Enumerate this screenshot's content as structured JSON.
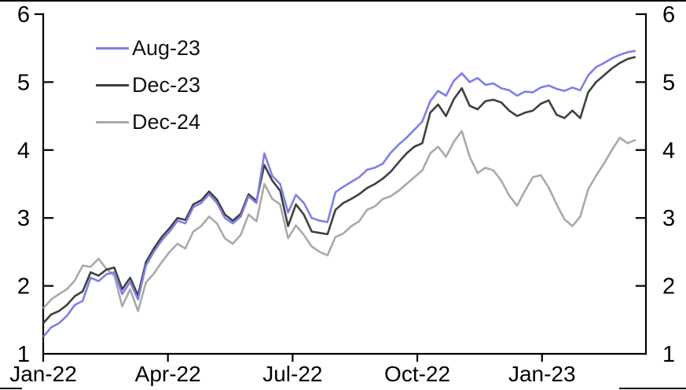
{
  "chart_data": {
    "type": "line",
    "title": "",
    "xlabel": "",
    "ylabel": "",
    "ylim": [
      1,
      6
    ],
    "grid": false,
    "legend_position": "inside-top-left",
    "axis_color": "#000000",
    "y_tick_labels_left": [
      "6",
      "5",
      "4",
      "3",
      "2",
      "1"
    ],
    "y_tick_labels_right": [
      "6",
      "5",
      "4",
      "3",
      "2",
      "1"
    ],
    "y_tick_values": [
      6,
      5,
      4,
      3,
      2,
      1
    ],
    "x_tick_labels": [
      "Jan-22",
      "Apr-22",
      "Jul-22",
      "Oct-22",
      "Jan-23"
    ],
    "x_tick_month_offsets": [
      0,
      3,
      6,
      9,
      12
    ],
    "x_range_months": 14.5,
    "series": [
      {
        "name": "Aug-23",
        "color": "#7e7ee8",
        "values": [
          1.25,
          1.39,
          1.45,
          1.56,
          1.72,
          1.78,
          2.12,
          2.07,
          2.17,
          2.2,
          1.88,
          2.06,
          1.8,
          2.3,
          2.5,
          2.67,
          2.8,
          2.96,
          2.92,
          3.16,
          3.22,
          3.35,
          3.22,
          3.0,
          2.92,
          3.02,
          3.32,
          3.22,
          3.95,
          3.62,
          3.5,
          3.08,
          3.34,
          3.22,
          3.0,
          2.96,
          2.94,
          3.38,
          3.46,
          3.53,
          3.6,
          3.71,
          3.74,
          3.8,
          3.96,
          4.08,
          4.18,
          4.3,
          4.42,
          4.72,
          4.87,
          4.8,
          5.02,
          5.13,
          5.0,
          5.06,
          4.96,
          4.98,
          4.91,
          4.88,
          4.8,
          4.86,
          4.85,
          4.92,
          4.95,
          4.9,
          4.87,
          4.92,
          4.88,
          5.1,
          5.22,
          5.28,
          5.35,
          5.4,
          5.44,
          5.46
        ]
      },
      {
        "name": "Dec-23",
        "color": "#3f3f3f",
        "values": [
          1.45,
          1.58,
          1.63,
          1.72,
          1.85,
          1.92,
          2.2,
          2.15,
          2.24,
          2.27,
          1.95,
          2.12,
          1.86,
          2.35,
          2.55,
          2.72,
          2.85,
          3.0,
          2.97,
          3.2,
          3.26,
          3.39,
          3.27,
          3.05,
          2.96,
          3.06,
          3.35,
          3.25,
          3.78,
          3.55,
          3.4,
          2.88,
          3.2,
          3.05,
          2.8,
          2.78,
          2.76,
          3.12,
          3.22,
          3.28,
          3.35,
          3.44,
          3.5,
          3.58,
          3.68,
          3.82,
          3.95,
          4.05,
          4.1,
          4.55,
          4.67,
          4.5,
          4.75,
          4.91,
          4.65,
          4.6,
          4.72,
          4.74,
          4.7,
          4.58,
          4.5,
          4.55,
          4.58,
          4.68,
          4.73,
          4.52,
          4.47,
          4.58,
          4.47,
          4.85,
          5.0,
          5.1,
          5.2,
          5.28,
          5.34,
          5.37
        ]
      },
      {
        "name": "Dec-24",
        "color": "#a9a9a9",
        "values": [
          1.67,
          1.8,
          1.88,
          1.95,
          2.08,
          2.3,
          2.28,
          2.4,
          2.25,
          2.15,
          1.7,
          1.95,
          1.63,
          2.05,
          2.18,
          2.35,
          2.5,
          2.62,
          2.55,
          2.8,
          2.88,
          3.02,
          2.92,
          2.7,
          2.62,
          2.75,
          3.05,
          2.95,
          3.5,
          3.28,
          3.2,
          2.7,
          2.89,
          2.75,
          2.58,
          2.5,
          2.45,
          2.72,
          2.77,
          2.88,
          2.95,
          3.12,
          3.17,
          3.28,
          3.32,
          3.4,
          3.5,
          3.6,
          3.7,
          3.95,
          4.05,
          3.9,
          4.12,
          4.28,
          3.9,
          3.66,
          3.74,
          3.7,
          3.55,
          3.33,
          3.18,
          3.4,
          3.6,
          3.63,
          3.45,
          3.2,
          2.98,
          2.88,
          3.02,
          3.42,
          3.62,
          3.8,
          4.0,
          4.18,
          4.1,
          4.15
        ]
      }
    ]
  }
}
